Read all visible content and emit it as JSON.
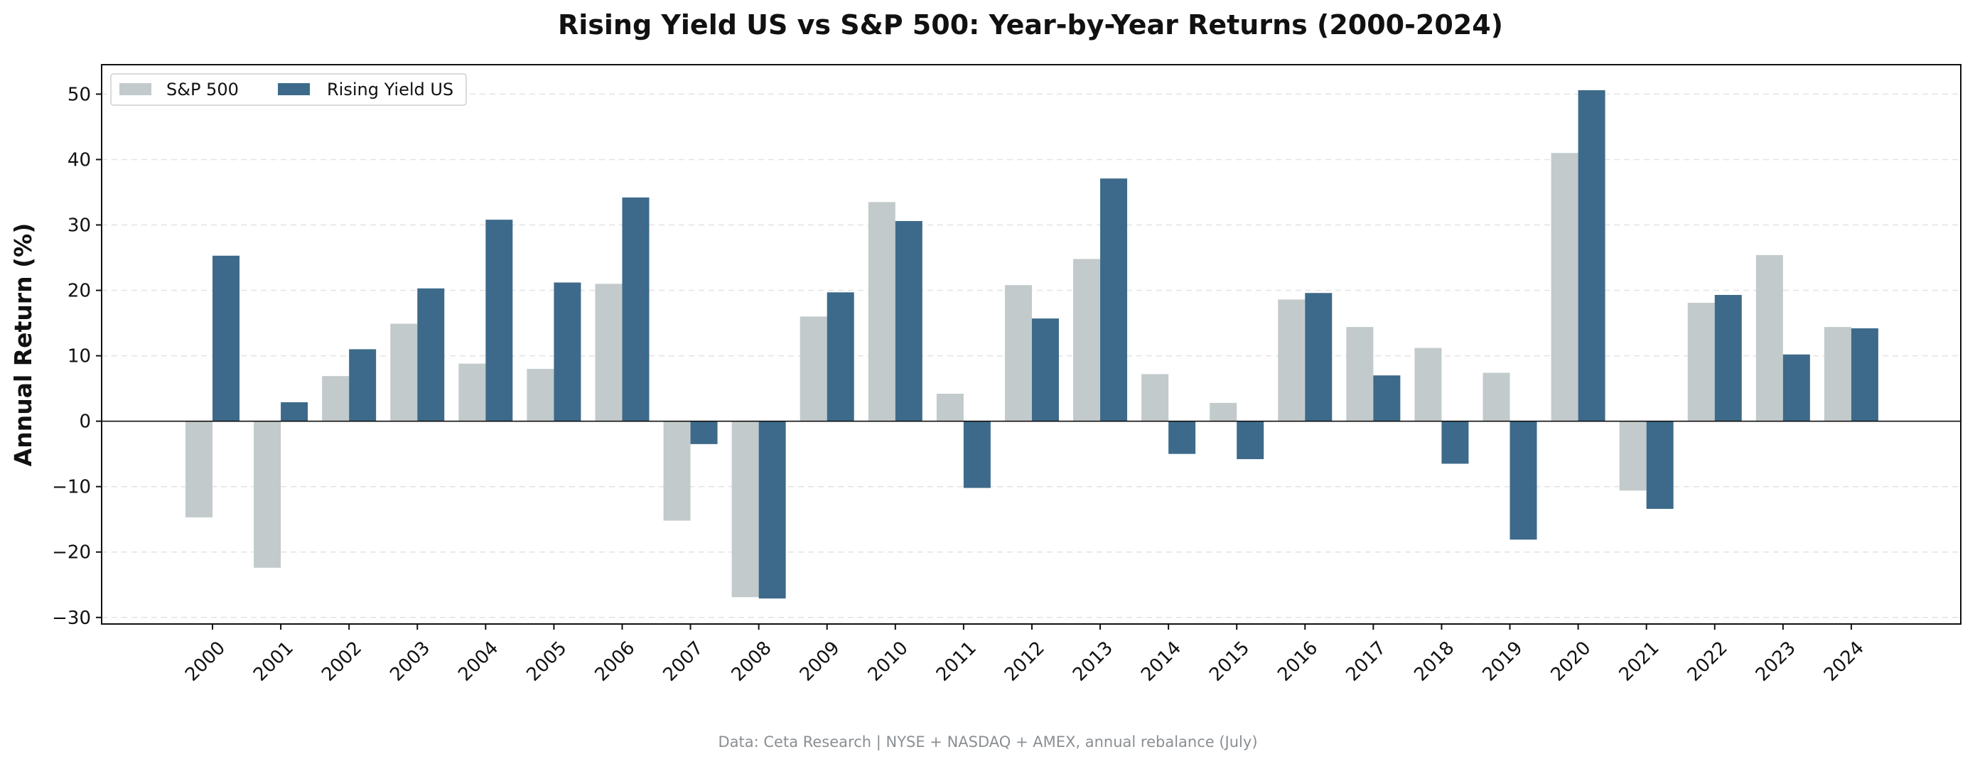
{
  "chart_data": {
    "type": "bar",
    "title": "Rising Yield US vs S&P 500: Year-by-Year Returns (2000-2024)",
    "xlabel": "",
    "ylabel": "Annual Return (%)",
    "footnote": "Data: Ceta Research | NYSE + NASDAQ + AMEX, annual rebalance (July)",
    "ylim": [
      -31,
      54.5
    ],
    "y_ticks": [
      50,
      40,
      30,
      20,
      10,
      0,
      -10,
      -20,
      -30
    ],
    "y_tick_labels": [
      "50",
      "40",
      "30",
      "20",
      "10",
      "0",
      "−10",
      "−20",
      "−30"
    ],
    "grid": "horizontal dashed",
    "legend_position": "top-left",
    "categories": [
      "2000",
      "2001",
      "2002",
      "2003",
      "2004",
      "2005",
      "2006",
      "2007",
      "2008",
      "2009",
      "2010",
      "2011",
      "2012",
      "2013",
      "2014",
      "2015",
      "2016",
      "2017",
      "2018",
      "2019",
      "2020",
      "2021",
      "2022",
      "2023",
      "2024"
    ],
    "series": [
      {
        "name": "S&P 500",
        "color": "#c2cacb",
        "values": [
          -14.7,
          -22.4,
          6.9,
          14.9,
          8.8,
          8.0,
          21.0,
          -15.2,
          -26.9,
          16.0,
          33.5,
          4.2,
          20.8,
          24.8,
          7.2,
          2.8,
          18.6,
          14.4,
          11.2,
          7.4,
          41.0,
          -10.6,
          18.1,
          25.4,
          14.4
        ]
      },
      {
        "name": "Rising Yield US",
        "color": "#3d6a8a",
        "values": [
          25.3,
          2.9,
          11.0,
          20.3,
          30.8,
          21.2,
          34.2,
          -3.5,
          -27.1,
          19.7,
          30.6,
          -10.2,
          15.7,
          37.1,
          -5.0,
          -5.8,
          19.6,
          7.0,
          -6.5,
          -18.1,
          50.6,
          -13.4,
          19.3,
          10.2,
          14.2
        ]
      }
    ]
  }
}
